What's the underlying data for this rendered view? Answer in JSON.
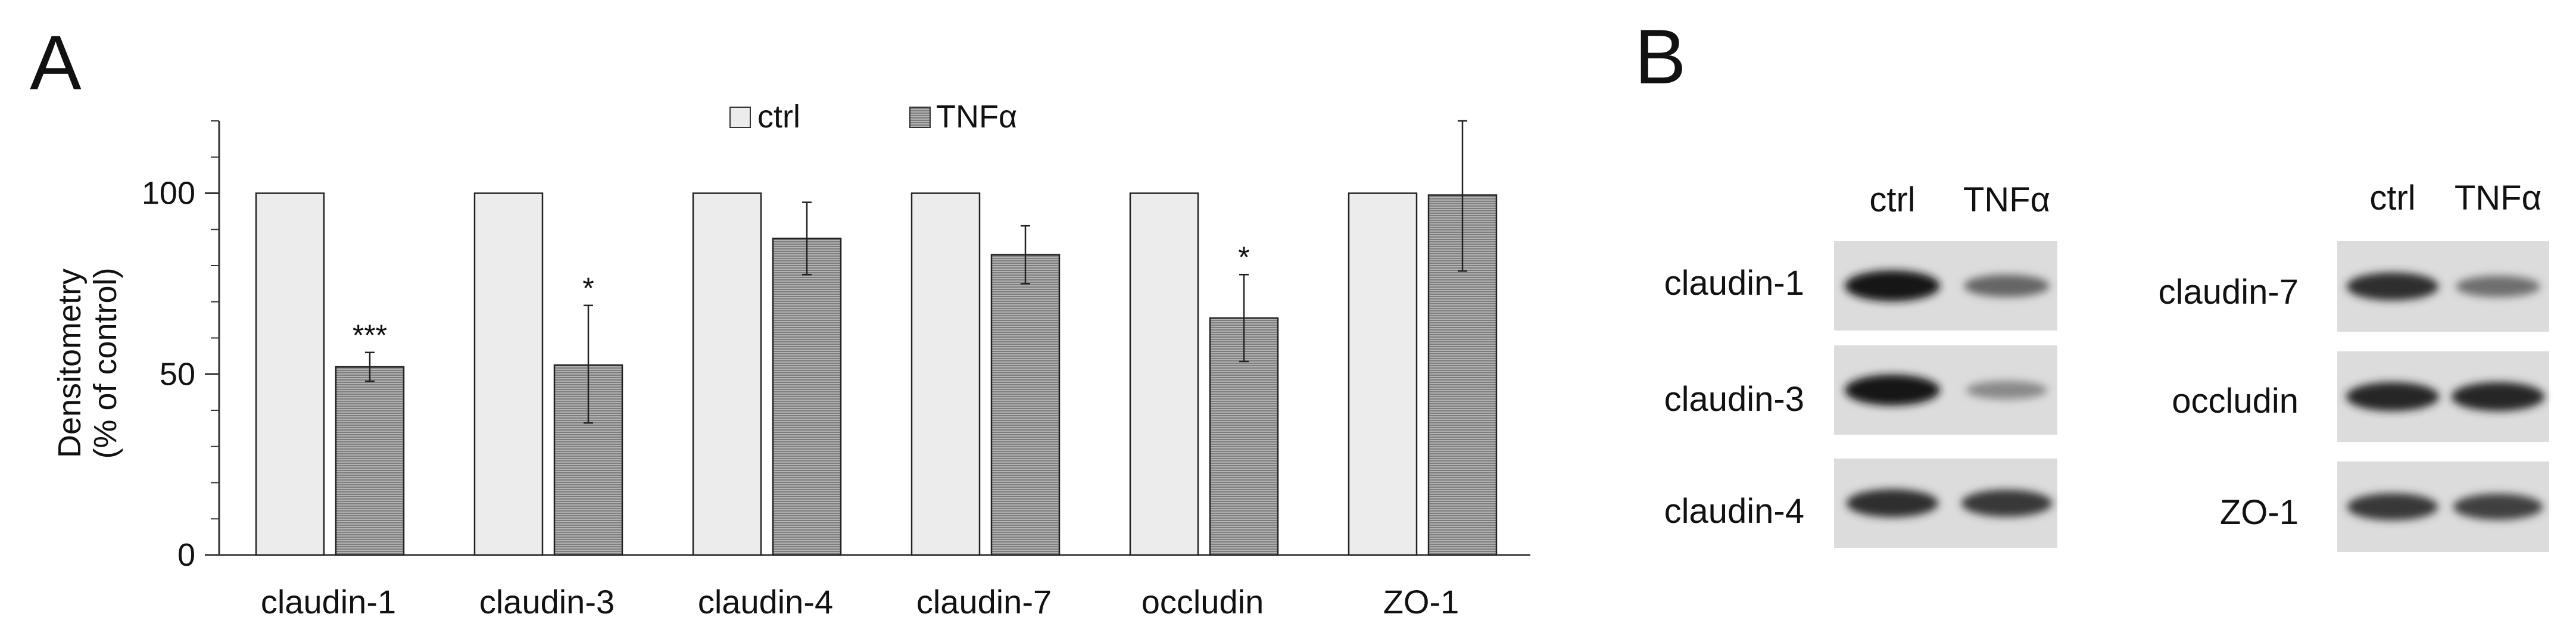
{
  "panel_a": {
    "letter": "A",
    "chart_data": {
      "type": "bar",
      "categories": [
        "claudin-1",
        "claudin-3",
        "claudin-4",
        "claudin-7",
        "occludin",
        "ZO-1"
      ],
      "series": [
        {
          "name": "ctrl",
          "color": "#ececec",
          "values": [
            100,
            100,
            100,
            100,
            100,
            100
          ]
        },
        {
          "name": "TNFα",
          "color": "#a8a8a8",
          "values": [
            52,
            52.5,
            87.5,
            83,
            65.5,
            99.5
          ],
          "err_low": [
            48,
            36.5,
            77.5,
            75,
            53.5,
            78.5
          ],
          "err_high": [
            56,
            69,
            97.5,
            91,
            77.5,
            120
          ]
        }
      ],
      "significance": [
        "***",
        "*",
        "",
        "",
        "*",
        ""
      ],
      "ylabel_lines": [
        "Densitometry",
        "(% of control)"
      ],
      "yticks": [
        "0",
        "50",
        "100"
      ],
      "ytick_values": [
        0,
        50,
        100
      ],
      "ylim": [
        0,
        120
      ],
      "legend_position": "top"
    }
  },
  "panel_b": {
    "letter": "B",
    "lane_labels": [
      "ctrl",
      "TNFα"
    ],
    "left_blots": [
      {
        "label": "claudin-1",
        "intensity": [
          1.0,
          0.55
        ]
      },
      {
        "label": "claudin-3",
        "intensity": [
          1.0,
          0.35
        ]
      },
      {
        "label": "claudin-4",
        "intensity": [
          0.85,
          0.8
        ]
      }
    ],
    "right_blots": [
      {
        "label": "claudin-7",
        "intensity": [
          0.85,
          0.5
        ]
      },
      {
        "label": "occludin",
        "intensity": [
          0.9,
          0.9
        ]
      },
      {
        "label": "ZO-1",
        "intensity": [
          0.8,
          0.75
        ]
      }
    ]
  }
}
